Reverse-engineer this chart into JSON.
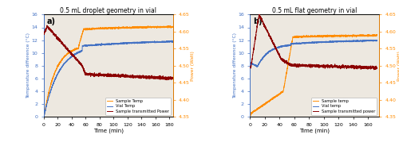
{
  "panel_a": {
    "title": "0.5 mL droplet geometry in vial",
    "label": "a)",
    "xlim": [
      0,
      185
    ],
    "ylim_left": [
      0,
      16
    ],
    "ylim_right": [
      4.35,
      4.65
    ],
    "yticks_left": [
      0,
      2,
      4,
      6,
      8,
      10,
      12,
      14,
      16
    ],
    "yticks_right": [
      4.35,
      4.4,
      4.45,
      4.5,
      4.55,
      4.6,
      4.65
    ],
    "xticks": [
      0,
      20,
      40,
      60,
      80,
      100,
      120,
      140,
      160,
      180
    ],
    "xlabel": "Time (min)",
    "ylabel_left": "Temperature difference (°C)",
    "ylabel_right": "Power (Watt)",
    "legend": [
      "Sample Temp",
      "Vial Temp",
      "Sample transmitted Power"
    ],
    "colors": {
      "sample_temp": "#FF8C00",
      "vial_temp": "#4472C4",
      "power": "#8B0000"
    }
  },
  "panel_b": {
    "title": "0.5 mL flat geometry in vial",
    "label": "b)",
    "xlim": [
      0,
      175
    ],
    "ylim_left": [
      0,
      16
    ],
    "ylim_right": [
      4.35,
      4.65
    ],
    "yticks_left": [
      0,
      2,
      4,
      6,
      8,
      10,
      12,
      14,
      16
    ],
    "yticks_right": [
      4.35,
      4.4,
      4.45,
      4.5,
      4.55,
      4.6,
      4.65
    ],
    "xticks": [
      0,
      20,
      40,
      60,
      80,
      100,
      120,
      140,
      160
    ],
    "xlabel": "Time (min)",
    "ylabel_left": "Temperature difference (°C)",
    "ylabel_right": "Power (Watt)",
    "legend": [
      "Sample temp",
      "Vial temp",
      "Sample transmitted power"
    ],
    "colors": {
      "sample_temp": "#FF8C00",
      "vial_temp": "#4472C4",
      "power": "#8B0000"
    }
  },
  "bg_color": "#EDE8E0",
  "fig_bg": "#ffffff",
  "left_spine_color": "#4472C4",
  "right_spine_color": "#FF8C00"
}
